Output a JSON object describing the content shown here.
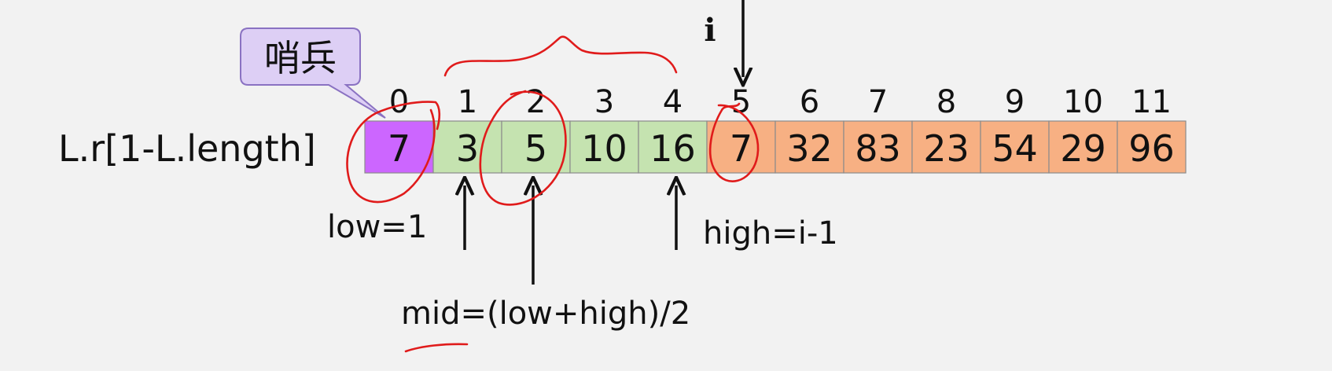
{
  "array_label": "L.r[1-L.length]",
  "sentinel_callout": "哨兵",
  "pointer_i": "i",
  "indices": [
    "0",
    "1",
    "2",
    "3",
    "4",
    "5",
    "6",
    "7",
    "8",
    "9",
    "10",
    "11"
  ],
  "cells": [
    {
      "value": "7",
      "state": "sentinel"
    },
    {
      "value": "3",
      "state": "sorted"
    },
    {
      "value": "5",
      "state": "sorted"
    },
    {
      "value": "10",
      "state": "sorted"
    },
    {
      "value": "16",
      "state": "sorted"
    },
    {
      "value": "7",
      "state": "unsorted"
    },
    {
      "value": "32",
      "state": "unsorted"
    },
    {
      "value": "83",
      "state": "unsorted"
    },
    {
      "value": "23",
      "state": "unsorted"
    },
    {
      "value": "54",
      "state": "unsorted"
    },
    {
      "value": "29",
      "state": "unsorted"
    },
    {
      "value": "96",
      "state": "unsorted"
    }
  ],
  "colors": {
    "sentinel": "#cc66ff",
    "sorted": "#c5e3b0",
    "unsorted": "#f7b083",
    "callout_fill": "#ddcff5",
    "callout_stroke": "#8a72c2",
    "annotation_ink": "#e01b1b"
  },
  "labels": {
    "low": "low=1",
    "high": "high=i-1",
    "mid": "mid=(low+high)/2"
  }
}
